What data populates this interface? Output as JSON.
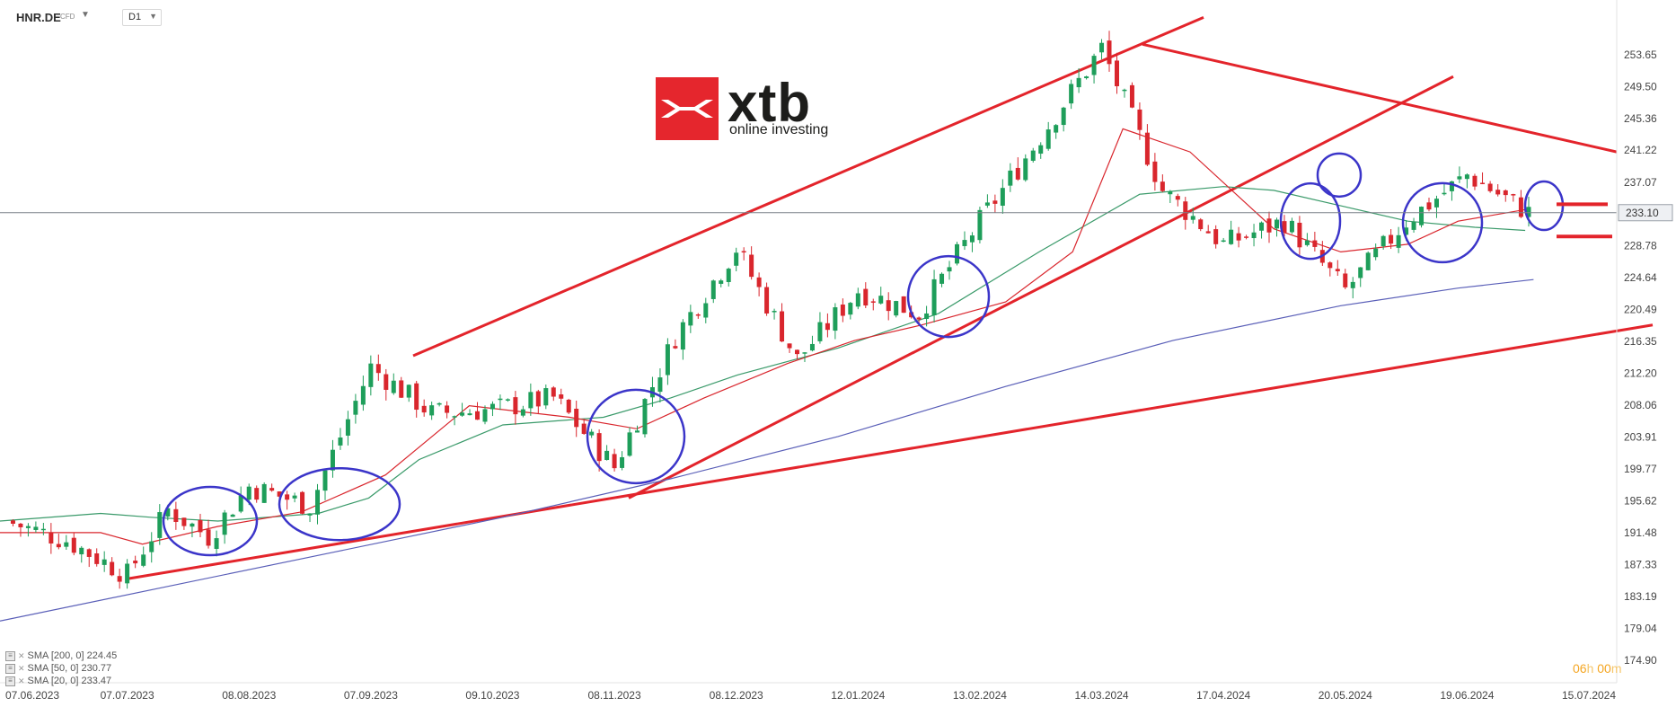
{
  "header": {
    "symbol": "HNR.DE",
    "instrument_type": "CFD",
    "timeframe": "D1"
  },
  "logo": {
    "brand": "xtb",
    "tagline": "online investing",
    "color": "#e5262d"
  },
  "countdown": {
    "hours": "06",
    "h_unit": "h",
    "minutes": "00",
    "m_unit": "m"
  },
  "indicators": [
    {
      "label": "SMA [200, 0] 224.45",
      "color": "#5a5fb8"
    },
    {
      "label": "SMA [50, 0] 230.77",
      "color": "#3a9a6a"
    },
    {
      "label": "SMA [20, 0] 233.47",
      "color": "#d9262d"
    }
  ],
  "chart_data": {
    "type": "candlestick",
    "symbol": "HNR.DE",
    "timeframe": "D1",
    "ylim": [
      174.9,
      255.5
    ],
    "y_ticks": [
      "253.65",
      "249.50",
      "245.36",
      "241.22",
      "237.07",
      "233.10",
      "228.78",
      "224.64",
      "220.49",
      "216.35",
      "212.20",
      "208.06",
      "203.91",
      "199.77",
      "195.62",
      "191.48",
      "187.33",
      "183.19",
      "179.04",
      "174.90"
    ],
    "x_ticks": [
      "07.06.2023",
      "07.07.2023",
      "08.08.2023",
      "07.09.2023",
      "09.10.2023",
      "08.11.2023",
      "08.12.2023",
      "12.01.2024",
      "13.02.2024",
      "14.03.2024",
      "17.04.2024",
      "20.05.2024",
      "19.06.2024",
      "15.07.2024"
    ],
    "current_price": 233.1,
    "current_price_label": "233.10",
    "colors": {
      "up": "#1e9e5a",
      "down": "#d9262d",
      "trend": "#e3242b",
      "highlight": "#3b35c9",
      "grid_line": "#7a8088"
    },
    "price_path": [
      {
        "date": "07.06.2023",
        "close": 193.0
      },
      {
        "date": "22.06.2023",
        "close": 190.5
      },
      {
        "date": "07.07.2023",
        "close": 186.0
      },
      {
        "date": "20.07.2023",
        "close": 194.5
      },
      {
        "date": "01.08.2023",
        "close": 191.0
      },
      {
        "date": "08.08.2023",
        "close": 197.5
      },
      {
        "date": "23.08.2023",
        "close": 195.0
      },
      {
        "date": "07.09.2023",
        "close": 213.0
      },
      {
        "date": "25.09.2023",
        "close": 207.0
      },
      {
        "date": "09.10.2023",
        "close": 207.5
      },
      {
        "date": "25.10.2023",
        "close": 209.0
      },
      {
        "date": "08.11.2023",
        "close": 200.0
      },
      {
        "date": "22.11.2023",
        "close": 217.0
      },
      {
        "date": "08.12.2023",
        "close": 228.5
      },
      {
        "date": "14.12.2023",
        "close": 214.0
      },
      {
        "date": "12.01.2024",
        "close": 223.0
      },
      {
        "date": "24.01.2024",
        "close": 220.0
      },
      {
        "date": "13.02.2024",
        "close": 232.0
      },
      {
        "date": "01.03.2024",
        "close": 243.0
      },
      {
        "date": "14.03.2024",
        "close": 254.5
      },
      {
        "date": "02.04.2024",
        "close": 236.0
      },
      {
        "date": "17.04.2024",
        "close": 229.0
      },
      {
        "date": "02.05.2024",
        "close": 232.0
      },
      {
        "date": "20.05.2024",
        "close": 223.0
      },
      {
        "date": "03.06.2024",
        "close": 232.0
      },
      {
        "date": "19.06.2024",
        "close": 238.0
      },
      {
        "date": "28.06.2024",
        "close": 233.1
      }
    ],
    "sma20": [
      [
        0,
        191.5
      ],
      [
        0.06,
        191.5
      ],
      [
        0.085,
        190.0
      ],
      [
        0.13,
        192.3
      ],
      [
        0.18,
        194.2
      ],
      [
        0.23,
        199.0
      ],
      [
        0.28,
        208.0
      ],
      [
        0.34,
        206.5
      ],
      [
        0.38,
        205.0
      ],
      [
        0.42,
        209.0
      ],
      [
        0.47,
        213.5
      ],
      [
        0.51,
        216.5
      ],
      [
        0.55,
        218.5
      ],
      [
        0.6,
        221.5
      ],
      [
        0.64,
        228.0
      ],
      [
        0.67,
        244.0
      ],
      [
        0.71,
        241.0
      ],
      [
        0.76,
        231.0
      ],
      [
        0.8,
        228.0
      ],
      [
        0.84,
        229.0
      ],
      [
        0.87,
        232.0
      ],
      [
        0.91,
        233.5
      ]
    ],
    "sma50": [
      [
        0,
        193.0
      ],
      [
        0.06,
        194.0
      ],
      [
        0.09,
        193.5
      ],
      [
        0.13,
        193.0
      ],
      [
        0.19,
        194.0
      ],
      [
        0.22,
        196.0
      ],
      [
        0.25,
        201.0
      ],
      [
        0.3,
        205.5
      ],
      [
        0.36,
        206.5
      ],
      [
        0.4,
        209.0
      ],
      [
        0.44,
        212.0
      ],
      [
        0.5,
        215.5
      ],
      [
        0.56,
        220.0
      ],
      [
        0.62,
        228.0
      ],
      [
        0.68,
        235.5
      ],
      [
        0.73,
        236.5
      ],
      [
        0.76,
        236.0
      ],
      [
        0.8,
        234.0
      ],
      [
        0.84,
        232.0
      ],
      [
        0.88,
        231.2
      ],
      [
        0.91,
        230.8
      ]
    ],
    "sma200": [
      [
        0,
        180.0
      ],
      [
        0.1,
        184.5
      ],
      [
        0.2,
        189.0
      ],
      [
        0.3,
        193.5
      ],
      [
        0.4,
        198.5
      ],
      [
        0.5,
        204.0
      ],
      [
        0.6,
        210.5
      ],
      [
        0.7,
        216.5
      ],
      [
        0.8,
        221.0
      ],
      [
        0.87,
        223.3
      ],
      [
        0.915,
        224.4
      ]
    ]
  }
}
